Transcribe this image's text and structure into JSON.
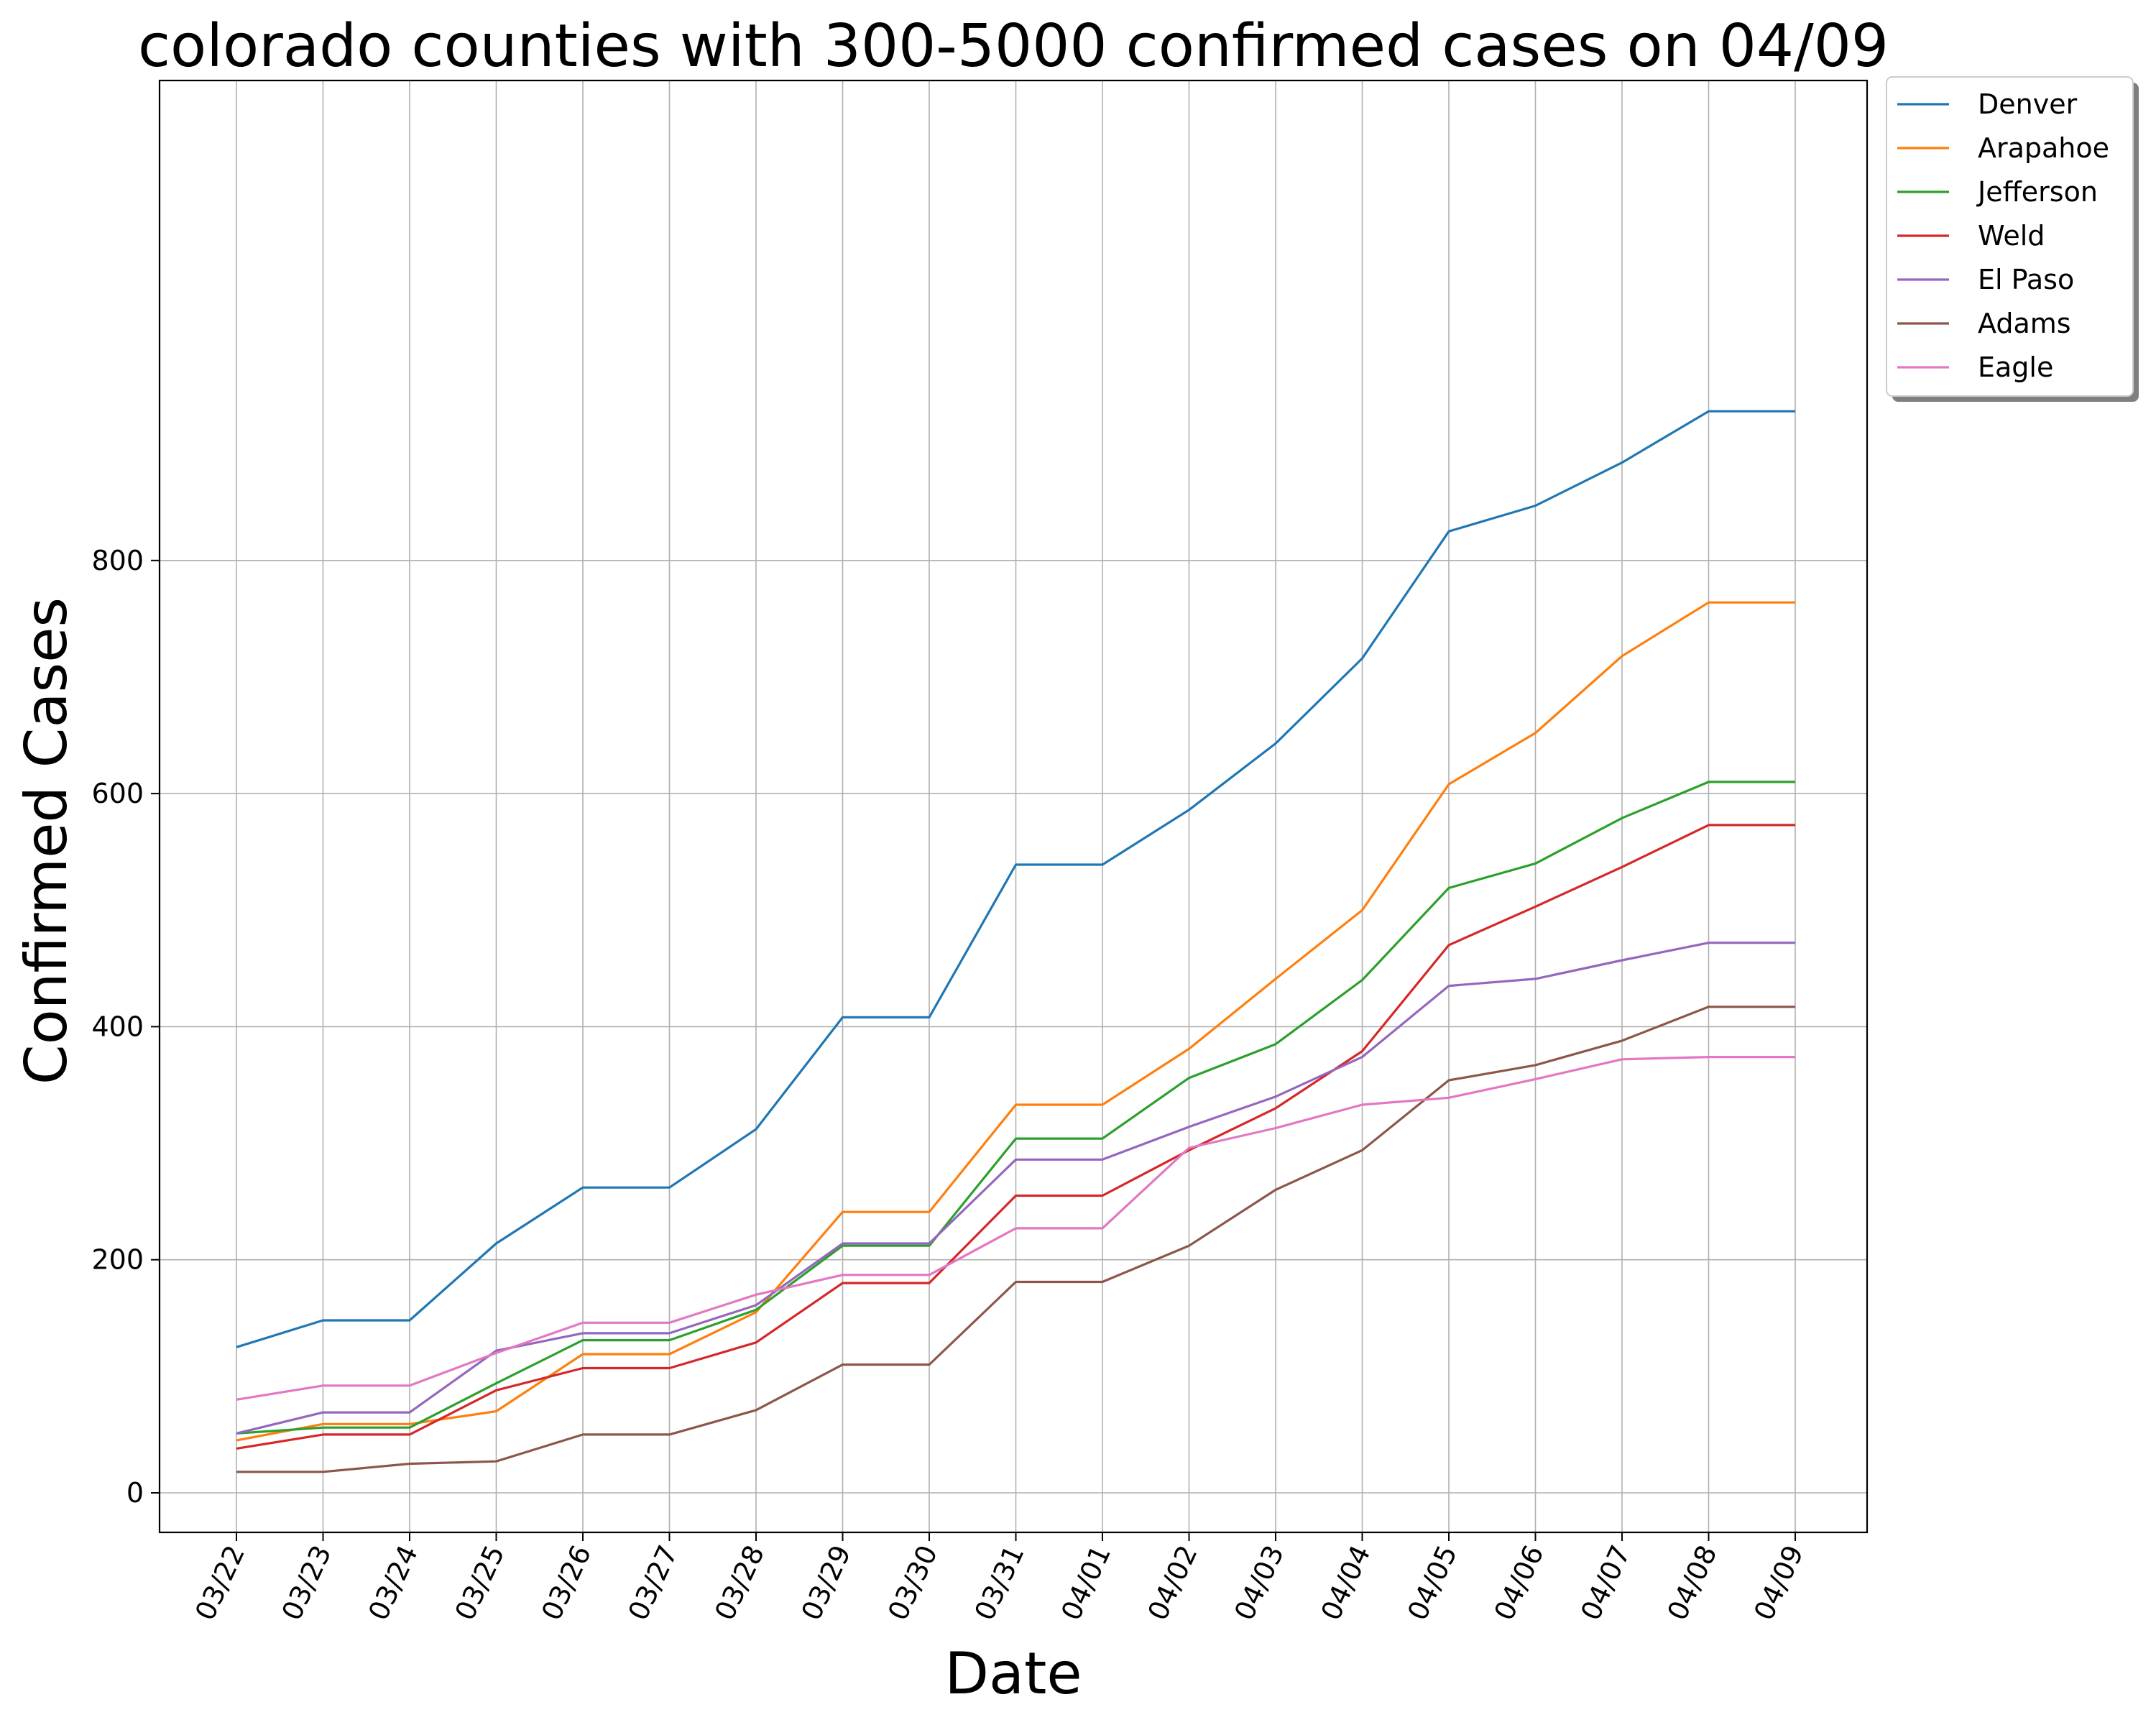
{
  "chart_data": {
    "type": "line",
    "title": "colorado counties with 300-5000 confirmed cases on 04/09",
    "xlabel": "Date",
    "ylabel": "Confirmed Cases",
    "categories": [
      "03/22",
      "03/23",
      "03/24",
      "03/25",
      "03/26",
      "03/27",
      "03/28",
      "03/29",
      "03/30",
      "03/31",
      "04/01",
      "04/02",
      "04/03",
      "04/04",
      "04/05",
      "04/06",
      "04/07",
      "04/08",
      "04/09"
    ],
    "ylim": [
      -53,
      975
    ],
    "yticks": [
      0,
      200,
      400,
      600,
      800
    ],
    "grid": true,
    "legend_position": "outside-top-right",
    "series": [
      {
        "name": "Denver",
        "color": "#1f77b4",
        "values": [
          125,
          148,
          148,
          214,
          262,
          262,
          312,
          408,
          408,
          539,
          539,
          586,
          643,
          716,
          825,
          847,
          884,
          928,
          928
        ]
      },
      {
        "name": "Arapahoe",
        "color": "#ff7f0e",
        "values": [
          45,
          59,
          59,
          70,
          119,
          119,
          155,
          241,
          241,
          333,
          333,
          381,
          441,
          500,
          608,
          652,
          718,
          764,
          764
        ]
      },
      {
        "name": "Jefferson",
        "color": "#2ca02c",
        "values": [
          51,
          56,
          56,
          94,
          131,
          131,
          157,
          212,
          212,
          304,
          304,
          356,
          385,
          440,
          519,
          540,
          579,
          610,
          610
        ]
      },
      {
        "name": "Weld",
        "color": "#d62728",
        "values": [
          38,
          50,
          50,
          88,
          107,
          107,
          129,
          180,
          180,
          255,
          255,
          294,
          330,
          379,
          470,
          503,
          537,
          573,
          573
        ]
      },
      {
        "name": "El Paso",
        "color": "#9467bd",
        "values": [
          51,
          69,
          69,
          122,
          137,
          137,
          161,
          214,
          214,
          286,
          286,
          314,
          340,
          374,
          435,
          441,
          457,
          472,
          472
        ]
      },
      {
        "name": "Adams",
        "color": "#8c564b",
        "values": [
          18,
          18,
          25,
          27,
          50,
          50,
          71,
          110,
          110,
          181,
          181,
          212,
          260,
          294,
          354,
          367,
          388,
          417,
          417
        ]
      },
      {
        "name": "Eagle",
        "color": "#e377c2",
        "values": [
          80,
          92,
          92,
          120,
          146,
          146,
          170,
          187,
          187,
          227,
          227,
          296,
          313,
          333,
          339,
          355,
          372,
          374,
          374
        ]
      }
    ]
  }
}
